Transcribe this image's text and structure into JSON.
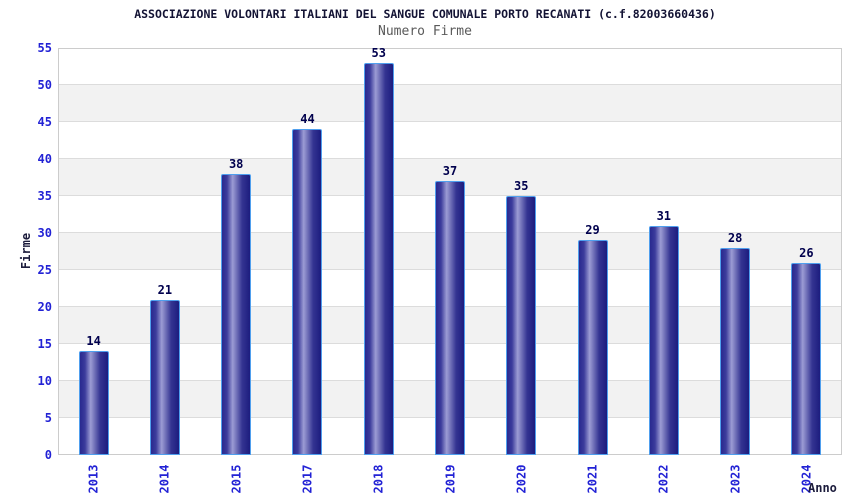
{
  "title": "ASSOCIAZIONE VOLONTARI ITALIANI DEL SANGUE COMUNALE PORTO RECANATI (c.f.82003660436)",
  "subtitle": "Numero Firme",
  "colors": {
    "title_text": "#131334",
    "subtitle_text": "#5a5a5a",
    "tick_label": "#2222d5",
    "value_label": "#00004d",
    "axis_title": "#1c1c3c",
    "band_gray": "#f2f2f2",
    "band_white": "#ffffff",
    "grid_line": "#dcdcdc",
    "plot_border": "#cccccc",
    "bar_dark": "#29298f",
    "bar_mid": "#3c3c9c",
    "bar_light": "#9c9cd4",
    "bar_shade": "#343492",
    "bar_darkest": "#1c1c7e",
    "bar_outline": "#4f9fee"
  },
  "chart_data": {
    "type": "bar",
    "title": "ASSOCIAZIONE VOLONTARI ITALIANI DEL SANGUE COMUNALE PORTO RECANATI (c.f.82003660436)",
    "subtitle": "Numero Firme",
    "categories": [
      "2013",
      "2014",
      "2015",
      "2017",
      "2018",
      "2019",
      "2020",
      "2021",
      "2022",
      "2023",
      "2024"
    ],
    "values": [
      14,
      21,
      38,
      44,
      53,
      37,
      35,
      29,
      31,
      28,
      26
    ],
    "xlabel": "Anno",
    "ylabel": "Firme",
    "ylim": [
      0,
      55
    ],
    "ytick_step": 5,
    "yticks": [
      0,
      5,
      10,
      15,
      20,
      25,
      30,
      35,
      40,
      45,
      50,
      55
    ],
    "grid": "horizontal",
    "alternating_bands": true,
    "legend": "none",
    "bar_value_labels": true,
    "x_tick_rotation": -90
  }
}
